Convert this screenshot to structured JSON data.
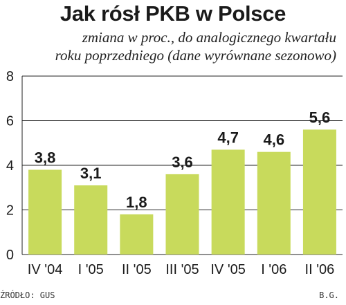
{
  "chart_data": {
    "type": "bar",
    "title": "Jak rósł PKB w Polsce",
    "subtitle_line1": "zmiana w proc., do analogicznego kwartału",
    "subtitle_line2": "roku poprzedniego (dane wyrównane sezonowo)",
    "categories": [
      "IV '04",
      "I '05",
      "II '05",
      "III '05",
      "IV '05",
      "I '06",
      "II '06"
    ],
    "values": [
      3.8,
      3.1,
      1.8,
      3.6,
      4.7,
      4.6,
      5.6
    ],
    "value_labels": [
      "3,8",
      "3,1",
      "1,8",
      "3,6",
      "4,7",
      "4,6",
      "5,6"
    ],
    "y_ticks": [
      "0",
      "2",
      "4",
      "6",
      "8"
    ],
    "ylim": [
      0,
      8
    ],
    "grid": "horizontal",
    "bar_color": "#c8da5c",
    "source": "ŹRÓDŁO: GUS",
    "author": "B.G."
  }
}
